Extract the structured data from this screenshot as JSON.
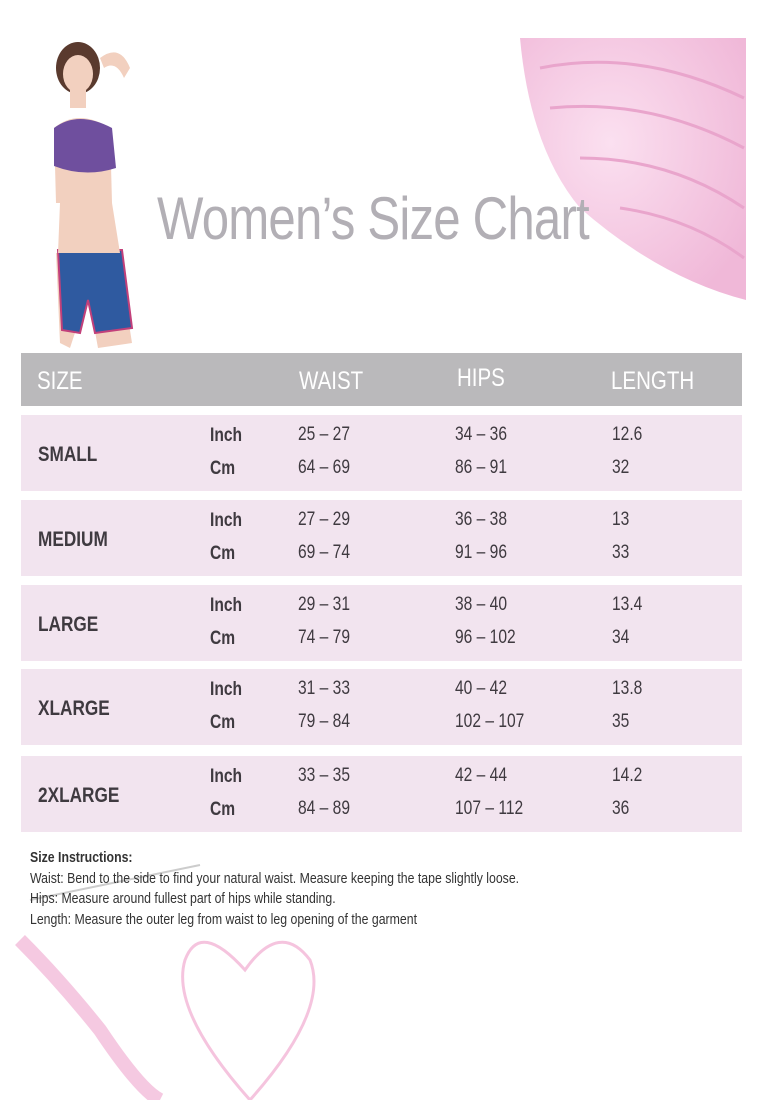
{
  "title": "Women’s Size Chart",
  "table": {
    "headers": [
      "SIZE",
      "WAIST",
      "HIPS",
      "LENGTH"
    ],
    "rows": [
      {
        "size": "SMALL",
        "inch": {
          "unit": "Inch",
          "waist": "25 – 27",
          "hips": "34 – 36",
          "length": "12.6"
        },
        "cm": {
          "unit": "Cm",
          "waist": "64 – 69",
          "hips": "86 – 91",
          "length": "32"
        }
      },
      {
        "size": "MEDIUM",
        "inch": {
          "unit": "Inch",
          "waist": "27 – 29",
          "hips": "36 – 38",
          "length": "13"
        },
        "cm": {
          "unit": "Cm",
          "waist": "69 – 74",
          "hips": "91 – 96",
          "length": "33"
        }
      },
      {
        "size": "LARGE",
        "inch": {
          "unit": "Inch",
          "waist": "29 – 31",
          "hips": "38 – 40",
          "length": "13.4"
        },
        "cm": {
          "unit": "Cm",
          "waist": "74 – 79",
          "hips": "96 – 102",
          "length": "34"
        }
      },
      {
        "size": "XLARGE",
        "inch": {
          "unit": "Inch",
          "waist": "31 – 33",
          "hips": "40 –  42",
          "length": "13.8"
        },
        "cm": {
          "unit": "Cm",
          "waist": "79 – 84",
          "hips": "102 – 107",
          "length": "35"
        }
      },
      {
        "size": "2XLARGE",
        "inch": {
          "unit": "Inch",
          "waist": "33 – 35",
          "hips": "42 –  44",
          "length": "14.2"
        },
        "cm": {
          "unit": "Cm",
          "waist": "84 – 89",
          "hips": "107 – 112",
          "length": "36"
        }
      }
    ]
  },
  "instructions": {
    "heading": "Size Instructions:",
    "lines": [
      "Waist: Bend to the side to find your natural waist. Measure keeping the tape slightly loose.",
      "Hips: Measure around fullest part of hips while standing.",
      "Length: Measure the outer leg from waist to leg opening of the garment"
    ]
  },
  "colors": {
    "header": "#bab9bb",
    "row": "#f2e4ef",
    "title": "#b2afb5",
    "yarn": "#f4c6e2"
  }
}
